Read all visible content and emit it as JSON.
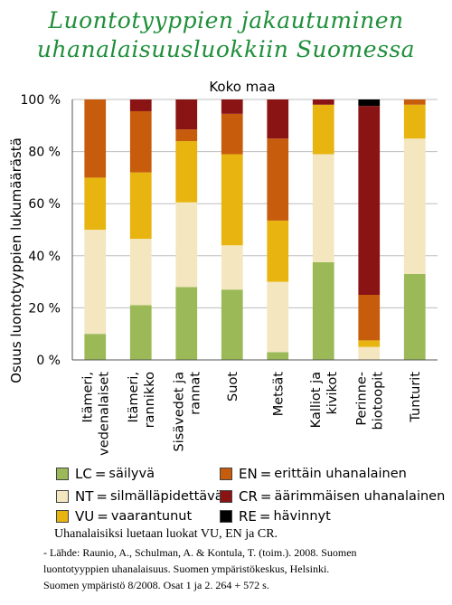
{
  "title_lines": [
    "Luontotyyppien jakautuminen",
    "uhanalaisuusluokkiin Suomessa"
  ],
  "chart_data": {
    "type": "bar",
    "stacked": true,
    "title": "Koko maa",
    "ylabel": "Osuus luontotyyppien lukumäärästä",
    "ylim": [
      0,
      100
    ],
    "yticks": [
      "0 %",
      "20 %",
      "40 %",
      "60 %",
      "80 %",
      "100 %"
    ],
    "grid": true,
    "categories": [
      [
        "Itämeri,",
        "vedenalaiset"
      ],
      [
        "Itämeri,",
        "rannikko"
      ],
      [
        "Sisävedet ja",
        "rannat"
      ],
      [
        "Suot"
      ],
      [
        "Metsät"
      ],
      [
        "Kalliot ja",
        "kivikot"
      ],
      [
        "Perinne-",
        "biotoopit"
      ],
      [
        "Tunturit"
      ]
    ],
    "series": [
      {
        "name": "LC",
        "color": "#9bb957",
        "values": [
          10,
          21,
          28,
          27,
          3,
          37.5,
          0,
          33
        ]
      },
      {
        "name": "NT",
        "color": "#f4e6be",
        "values": [
          40,
          25.5,
          32.5,
          17,
          27,
          41.5,
          5,
          52
        ]
      },
      {
        "name": "VU",
        "color": "#e8b40f",
        "values": [
          20,
          25.5,
          23.5,
          35,
          23.5,
          19,
          2.5,
          13
        ]
      },
      {
        "name": "EN",
        "color": "#c65c0c",
        "values": [
          30,
          23.5,
          4.5,
          15.5,
          31.5,
          0,
          17.5,
          2
        ]
      },
      {
        "name": "CR",
        "color": "#8a1313",
        "values": [
          0,
          4.5,
          11.5,
          5.5,
          15,
          2,
          72.5,
          0
        ]
      },
      {
        "name": "RE",
        "color": "#000000",
        "values": [
          0,
          0,
          0,
          0,
          0,
          0,
          2.5,
          0
        ]
      }
    ]
  },
  "legend": [
    {
      "abbr": "LC",
      "text": "säilyvä",
      "color": "#9bb957"
    },
    {
      "abbr": "EN",
      "text": "erittäin uhanalainen",
      "color": "#c65c0c"
    },
    {
      "abbr": "NT",
      "text": "silmälläpidettävä",
      "color": "#f4e6be"
    },
    {
      "abbr": "CR",
      "text": "äärimmäisen uhanalainen",
      "color": "#8a1313"
    },
    {
      "abbr": "VU",
      "text": "vaarantunut",
      "color": "#e8b40f"
    },
    {
      "abbr": "RE",
      "text": "hävinnyt",
      "color": "#000000"
    }
  ],
  "legend_eq": "=",
  "note": "Uhanalaisiksi luetaan luokat VU, EN ja CR.",
  "source_lines": [
    "- Lähde: Raunio, A., Schulman, A. & Kontula, T. (toim.). 2008. Suomen",
    "luontotyyppien uhanalaisuus. Suomen ympäristökeskus, Helsinki.",
    "Suomen ympäristö 8/2008. Osat 1 ja 2. 264 + 572 s."
  ]
}
